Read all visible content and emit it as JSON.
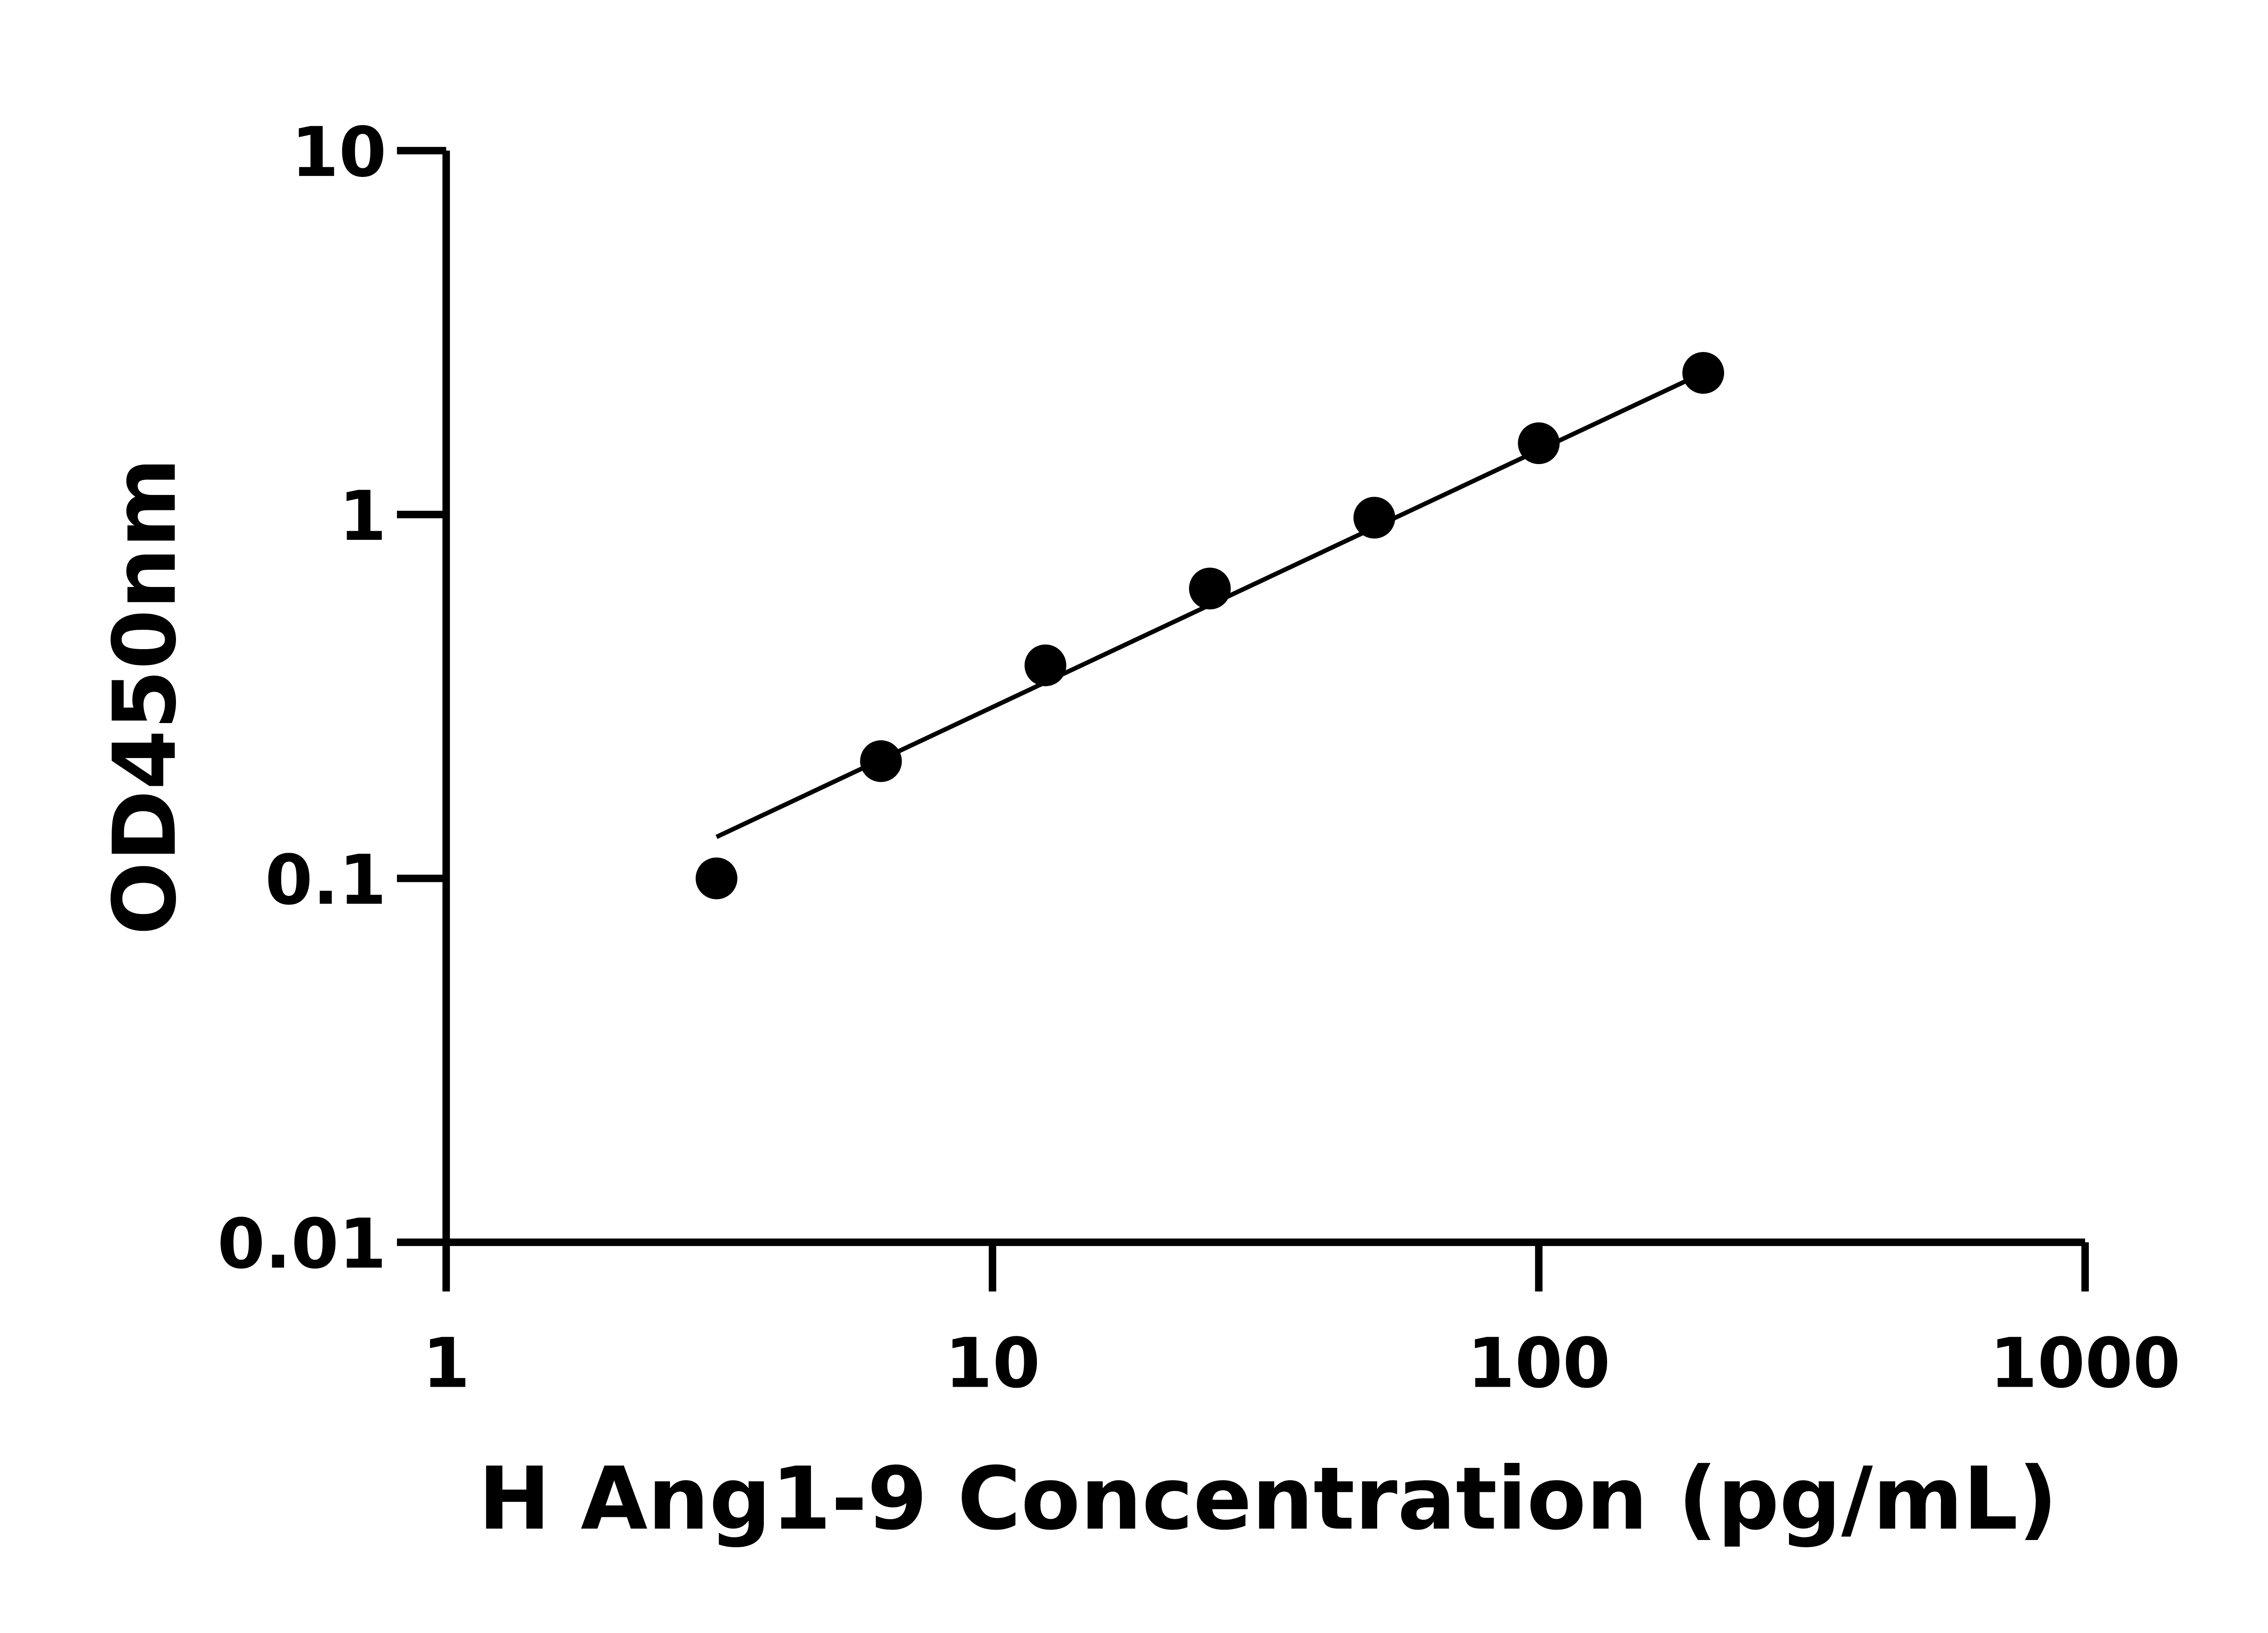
{
  "chart_data": {
    "type": "scatter",
    "title": "",
    "xlabel": "H Ang1-9 Concentration (pg/mL)",
    "ylabel": "OD450nm",
    "x_scale": "log",
    "y_scale": "log",
    "xlim": [
      1,
      1000
    ],
    "ylim": [
      0.01,
      10
    ],
    "x_ticks": [
      "1",
      "10",
      "100",
      "1000"
    ],
    "y_ticks": [
      "0.01",
      "0.1",
      "1",
      "10"
    ],
    "grid": false,
    "legend": "none",
    "series": [
      {
        "x": [
          3.125,
          6.25,
          12.5,
          25,
          50,
          100,
          200
        ],
        "y": [
          0.1,
          0.21,
          0.385,
          0.626,
          0.98,
          1.57,
          2.45
        ],
        "marker": "circle",
        "color": "#000000"
      }
    ],
    "fit_line": {
      "x": [
        3.125,
        200
      ],
      "y": [
        0.13,
        2.45
      ],
      "color": "#000000"
    }
  }
}
